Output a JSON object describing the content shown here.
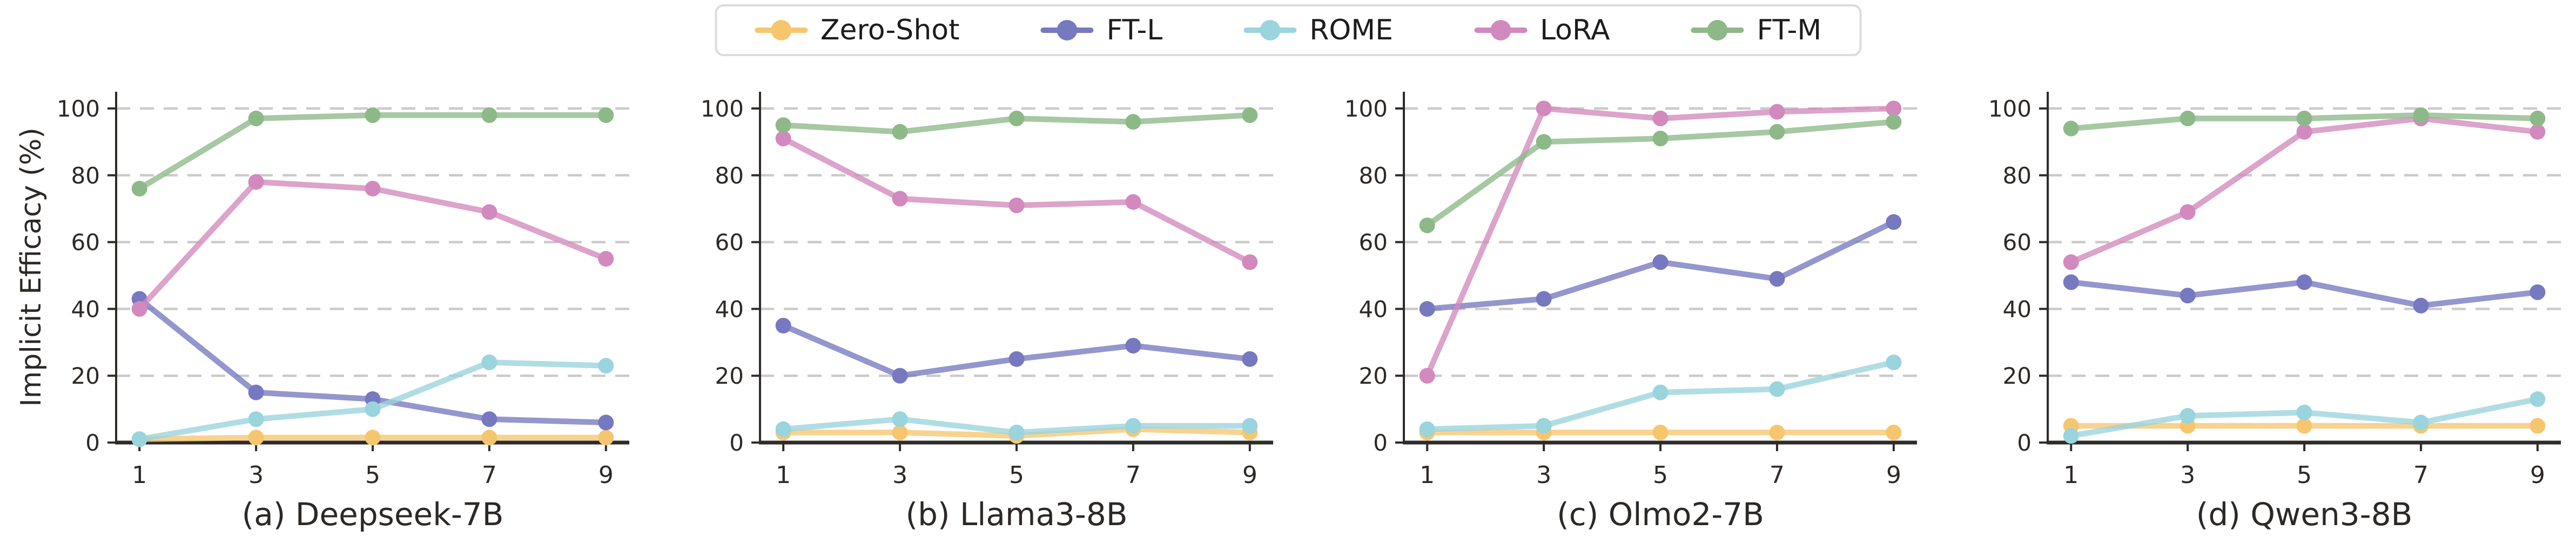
{
  "figure": {
    "ylabel": "Implicit Efficacy (%)",
    "background": "#ffffff",
    "grid_color": "#cbcbcb",
    "spine_color": "#2e2b29",
    "legend": [
      {
        "label": "Zero-Shot",
        "color": "#f6c66f"
      },
      {
        "label": "FT-L",
        "color": "#7679bf"
      },
      {
        "label": "ROME",
        "color": "#9ad4dc"
      },
      {
        "label": "LoRA",
        "color": "#d289bd"
      },
      {
        "label": "FT-M",
        "color": "#8db988"
      }
    ]
  },
  "chart_data": [
    {
      "type": "line",
      "title": "(a) Deepseek-7B",
      "xlabel": "",
      "ylabel": "Implicit Efficacy (%)",
      "x": [
        1,
        3,
        5,
        7,
        9
      ],
      "xticks": [
        1,
        3,
        5,
        7,
        9
      ],
      "yticks": [
        0,
        20,
        40,
        60,
        80,
        100
      ],
      "ylim": [
        0,
        105
      ],
      "grid": true,
      "legend_position": "figure-top-center",
      "series": [
        {
          "name": "Zero-Shot",
          "color": "#f6c66f",
          "values": [
            1,
            1.5,
            1.5,
            1.5,
            1.5
          ]
        },
        {
          "name": "FT-L",
          "color": "#7679bf",
          "values": [
            43,
            15,
            13,
            7,
            6
          ]
        },
        {
          "name": "ROME",
          "color": "#9ad4dc",
          "values": [
            1,
            7,
            10,
            24,
            23
          ]
        },
        {
          "name": "LoRA",
          "color": "#d289bd",
          "values": [
            40,
            78,
            76,
            69,
            55
          ]
        },
        {
          "name": "FT-M",
          "color": "#8db988",
          "values": [
            76,
            97,
            98,
            98,
            98
          ]
        }
      ]
    },
    {
      "type": "line",
      "title": "(b) Llama3-8B",
      "xlabel": "",
      "ylabel": "",
      "x": [
        1,
        3,
        5,
        7,
        9
      ],
      "xticks": [
        1,
        3,
        5,
        7,
        9
      ],
      "yticks": [
        0,
        20,
        40,
        60,
        80,
        100
      ],
      "ylim": [
        0,
        105
      ],
      "grid": true,
      "legend_position": "figure-top-center",
      "series": [
        {
          "name": "Zero-Shot",
          "color": "#f6c66f",
          "values": [
            3,
            3,
            2,
            4,
            3
          ]
        },
        {
          "name": "FT-L",
          "color": "#7679bf",
          "values": [
            35,
            20,
            25,
            29,
            25
          ]
        },
        {
          "name": "ROME",
          "color": "#9ad4dc",
          "values": [
            4,
            7,
            3,
            5,
            5
          ]
        },
        {
          "name": "LoRA",
          "color": "#d289bd",
          "values": [
            91,
            73,
            71,
            72,
            54
          ]
        },
        {
          "name": "FT-M",
          "color": "#8db988",
          "values": [
            95,
            93,
            97,
            96,
            98
          ]
        }
      ]
    },
    {
      "type": "line",
      "title": "(c) Olmo2-7B",
      "xlabel": "",
      "ylabel": "",
      "x": [
        1,
        3,
        5,
        7,
        9
      ],
      "xticks": [
        1,
        3,
        5,
        7,
        9
      ],
      "yticks": [
        0,
        20,
        40,
        60,
        80,
        100
      ],
      "ylim": [
        0,
        105
      ],
      "grid": true,
      "legend_position": "figure-top-center",
      "series": [
        {
          "name": "Zero-Shot",
          "color": "#f6c66f",
          "values": [
            3,
            3,
            3,
            3,
            3
          ]
        },
        {
          "name": "FT-L",
          "color": "#7679bf",
          "values": [
            40,
            43,
            54,
            49,
            66
          ]
        },
        {
          "name": "ROME",
          "color": "#9ad4dc",
          "values": [
            4,
            5,
            15,
            16,
            24
          ]
        },
        {
          "name": "LoRA",
          "color": "#d289bd",
          "values": [
            20,
            100,
            97,
            99,
            100
          ]
        },
        {
          "name": "FT-M",
          "color": "#8db988",
          "values": [
            65,
            90,
            91,
            93,
            96
          ]
        }
      ]
    },
    {
      "type": "line",
      "title": "(d) Qwen3-8B",
      "xlabel": "",
      "ylabel": "",
      "x": [
        1,
        3,
        5,
        7,
        9
      ],
      "xticks": [
        1,
        3,
        5,
        7,
        9
      ],
      "yticks": [
        0,
        20,
        40,
        60,
        80,
        100
      ],
      "ylim": [
        0,
        105
      ],
      "grid": true,
      "legend_position": "figure-top-center",
      "series": [
        {
          "name": "Zero-Shot",
          "color": "#f6c66f",
          "values": [
            5,
            5,
            5,
            5,
            5
          ]
        },
        {
          "name": "FT-L",
          "color": "#7679bf",
          "values": [
            48,
            44,
            48,
            41,
            45
          ]
        },
        {
          "name": "ROME",
          "color": "#9ad4dc",
          "values": [
            2,
            8,
            9,
            6,
            13
          ]
        },
        {
          "name": "LoRA",
          "color": "#d289bd",
          "values": [
            54,
            69,
            93,
            97,
            93
          ]
        },
        {
          "name": "FT-M",
          "color": "#8db988",
          "values": [
            94,
            97,
            97,
            98,
            97
          ]
        }
      ]
    }
  ]
}
